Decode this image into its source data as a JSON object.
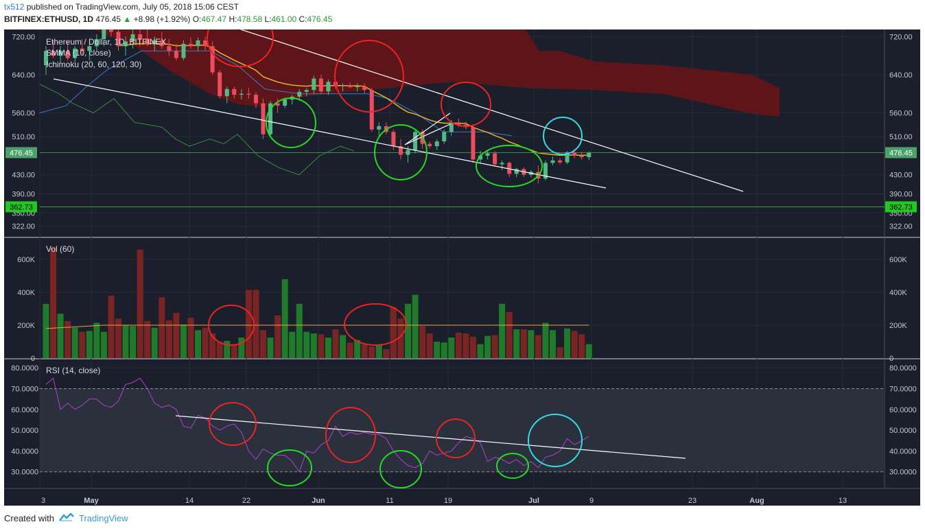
{
  "header": {
    "user": "tx512",
    "published": "published on TradingView.com, July 05, 2018 15:06 CEST",
    "symbol": "BITFINEX:ETHUSD, 1D",
    "last": "476.45",
    "change": "+8.98 (+1.92%)",
    "o_label": "O:",
    "o": "467.47",
    "h_label": "H:",
    "h": "478.58",
    "l_label": "L:",
    "l": "461.00",
    "c_label": "C:",
    "c": "476.45"
  },
  "footer": {
    "created_with": "Created with",
    "brand": "TradingView"
  },
  "colors": {
    "bg": "#1b1f2b",
    "up": "#53b987",
    "down": "#eb4d5c",
    "cloud": "#6a1418",
    "smma": "#e0b52a",
    "rsi": "#b040d0",
    "green_circle": "#22dd22",
    "red_circle": "#ee2222",
    "cyan_circle": "#33dde8"
  },
  "chart_data": [
    {
      "type": "candlestick",
      "title": "Ethereum / Dollar, 1D, BITFINEX",
      "legend": [
        "SMMA (10, close)",
        "Ichimoku (20, 60, 120, 30)"
      ],
      "yticks": [
        720,
        640,
        560,
        510,
        430,
        390,
        350,
        322
      ],
      "ytick_labels": [
        "720.00",
        "640.00",
        "560.00",
        "510.00",
        "430.00",
        "390.00",
        "350.00",
        "322.00"
      ],
      "ylim": [
        300,
        735
      ],
      "price_tag": "476.45",
      "support_tag": "362.73",
      "xticks": [
        "3",
        "May",
        "14",
        "22",
        "Jun",
        "11",
        "19",
        "Jul",
        "9",
        "23",
        "Aug",
        "13"
      ],
      "candles": [
        {
          "d": "May 1",
          "o": 660,
          "h": 700,
          "l": 640,
          "c": 690
        },
        {
          "d": "May 2",
          "o": 690,
          "h": 712,
          "l": 675,
          "c": 680
        },
        {
          "d": "May 3",
          "o": 680,
          "h": 700,
          "l": 665,
          "c": 690
        },
        {
          "d": "May 4",
          "o": 690,
          "h": 710,
          "l": 670,
          "c": 675
        },
        {
          "d": "May 5",
          "o": 675,
          "h": 700,
          "l": 665,
          "c": 695
        },
        {
          "d": "May 6",
          "o": 695,
          "h": 715,
          "l": 680,
          "c": 690
        },
        {
          "d": "May 7",
          "o": 690,
          "h": 705,
          "l": 670,
          "c": 700
        },
        {
          "d": "May 8",
          "o": 700,
          "h": 725,
          "l": 690,
          "c": 715
        },
        {
          "d": "May 9",
          "o": 715,
          "h": 760,
          "l": 700,
          "c": 745
        },
        {
          "d": "May 10",
          "o": 745,
          "h": 770,
          "l": 720,
          "c": 730
        },
        {
          "d": "May 11",
          "o": 730,
          "h": 750,
          "l": 690,
          "c": 700
        },
        {
          "d": "May 12",
          "o": 700,
          "h": 720,
          "l": 680,
          "c": 710
        },
        {
          "d": "May 13",
          "o": 710,
          "h": 735,
          "l": 695,
          "c": 725
        },
        {
          "d": "May 14",
          "o": 725,
          "h": 740,
          "l": 700,
          "c": 715
        },
        {
          "d": "May 15",
          "o": 715,
          "h": 735,
          "l": 700,
          "c": 705
        },
        {
          "d": "May 16",
          "o": 705,
          "h": 720,
          "l": 690,
          "c": 712
        },
        {
          "d": "May 17",
          "o": 712,
          "h": 730,
          "l": 695,
          "c": 700
        },
        {
          "d": "May 18",
          "o": 700,
          "h": 715,
          "l": 680,
          "c": 690
        },
        {
          "d": "May 19",
          "o": 690,
          "h": 705,
          "l": 670,
          "c": 675
        },
        {
          "d": "May 20",
          "o": 675,
          "h": 712,
          "l": 670,
          "c": 705
        },
        {
          "d": "May 21",
          "o": 705,
          "h": 718,
          "l": 695,
          "c": 700
        },
        {
          "d": "May 22",
          "o": 700,
          "h": 718,
          "l": 690,
          "c": 712
        },
        {
          "d": "May 23",
          "o": 712,
          "h": 720,
          "l": 690,
          "c": 700
        },
        {
          "d": "May 24",
          "o": 700,
          "h": 710,
          "l": 640,
          "c": 645
        },
        {
          "d": "May 25",
          "o": 645,
          "h": 650,
          "l": 590,
          "c": 595
        },
        {
          "d": "May 26",
          "o": 595,
          "h": 615,
          "l": 580,
          "c": 610
        },
        {
          "d": "May 27",
          "o": 610,
          "h": 615,
          "l": 590,
          "c": 598
        },
        {
          "d": "May 28",
          "o": 598,
          "h": 610,
          "l": 588,
          "c": 600
        },
        {
          "d": "May 29",
          "o": 600,
          "h": 612,
          "l": 590,
          "c": 598
        },
        {
          "d": "May 30",
          "o": 598,
          "h": 603,
          "l": 570,
          "c": 580
        },
        {
          "d": "May 31",
          "o": 580,
          "h": 590,
          "l": 505,
          "c": 515
        },
        {
          "d": "Jun 1",
          "o": 515,
          "h": 585,
          "l": 510,
          "c": 580
        },
        {
          "d": "Jun 2",
          "o": 580,
          "h": 590,
          "l": 560,
          "c": 575
        },
        {
          "d": "Jun 3",
          "o": 575,
          "h": 592,
          "l": 570,
          "c": 588
        },
        {
          "d": "Jun 4",
          "o": 588,
          "h": 598,
          "l": 578,
          "c": 594
        },
        {
          "d": "Jun 5",
          "o": 594,
          "h": 610,
          "l": 585,
          "c": 604
        },
        {
          "d": "Jun 6",
          "o": 604,
          "h": 612,
          "l": 595,
          "c": 608
        },
        {
          "d": "Jun 7",
          "o": 608,
          "h": 638,
          "l": 600,
          "c": 632
        },
        {
          "d": "Jun 8",
          "o": 632,
          "h": 640,
          "l": 600,
          "c": 605
        },
        {
          "d": "Jun 9",
          "o": 605,
          "h": 630,
          "l": 598,
          "c": 625
        },
        {
          "d": "Jun 10",
          "o": 625,
          "h": 630,
          "l": 610,
          "c": 616
        },
        {
          "d": "Jun 11",
          "o": 616,
          "h": 622,
          "l": 605,
          "c": 618
        },
        {
          "d": "Jun 12",
          "o": 618,
          "h": 624,
          "l": 612,
          "c": 614
        },
        {
          "d": "Jun 13",
          "o": 614,
          "h": 622,
          "l": 605,
          "c": 616
        },
        {
          "d": "Jun 14",
          "o": 616,
          "h": 622,
          "l": 600,
          "c": 608
        },
        {
          "d": "Jun 15",
          "o": 608,
          "h": 612,
          "l": 520,
          "c": 525
        },
        {
          "d": "Jun 16",
          "o": 525,
          "h": 540,
          "l": 512,
          "c": 532
        },
        {
          "d": "Jun 17",
          "o": 532,
          "h": 540,
          "l": 515,
          "c": 520
        },
        {
          "d": "Jun 18",
          "o": 520,
          "h": 525,
          "l": 482,
          "c": 490
        },
        {
          "d": "Jun 19",
          "o": 490,
          "h": 505,
          "l": 462,
          "c": 472
        },
        {
          "d": "Jun 20",
          "o": 472,
          "h": 490,
          "l": 455,
          "c": 482
        },
        {
          "d": "Jun 21",
          "o": 482,
          "h": 525,
          "l": 475,
          "c": 520
        },
        {
          "d": "Jun 22",
          "o": 520,
          "h": 525,
          "l": 485,
          "c": 495
        },
        {
          "d": "Jun 23",
          "o": 495,
          "h": 500,
          "l": 485,
          "c": 490
        },
        {
          "d": "Jun 24",
          "o": 490,
          "h": 505,
          "l": 482,
          "c": 500
        },
        {
          "d": "Jun 25",
          "o": 500,
          "h": 525,
          "l": 495,
          "c": 520
        },
        {
          "d": "Jun 26",
          "o": 520,
          "h": 545,
          "l": 512,
          "c": 540
        },
        {
          "d": "Jun 27",
          "o": 540,
          "h": 548,
          "l": 530,
          "c": 535
        },
        {
          "d": "Jun 28",
          "o": 535,
          "h": 542,
          "l": 525,
          "c": 530
        },
        {
          "d": "Jun 29",
          "o": 530,
          "h": 536,
          "l": 455,
          "c": 462
        },
        {
          "d": "Jun 30",
          "o": 462,
          "h": 480,
          "l": 455,
          "c": 470
        },
        {
          "d": "Jul 1",
          "o": 470,
          "h": 480,
          "l": 462,
          "c": 475
        },
        {
          "d": "Jul 2",
          "o": 475,
          "h": 480,
          "l": 448,
          "c": 452
        },
        {
          "d": "Jul 3",
          "o": 452,
          "h": 460,
          "l": 440,
          "c": 455
        },
        {
          "d": "Jul 4",
          "o": 455,
          "h": 458,
          "l": 425,
          "c": 432
        },
        {
          "d": "Jul 5",
          "o": 432,
          "h": 445,
          "l": 425,
          "c": 442
        },
        {
          "d": "Jul 6",
          "o": 442,
          "h": 446,
          "l": 425,
          "c": 430
        },
        {
          "d": "Jul 7",
          "o": 430,
          "h": 440,
          "l": 425,
          "c": 436
        },
        {
          "d": "Jul 8",
          "o": 436,
          "h": 450,
          "l": 412,
          "c": 422
        },
        {
          "d": "Jul 9",
          "o": 422,
          "h": 460,
          "l": 418,
          "c": 455
        },
        {
          "d": "Jul 10",
          "o": 455,
          "h": 468,
          "l": 450,
          "c": 460
        },
        {
          "d": "Jul 11",
          "o": 460,
          "h": 465,
          "l": 452,
          "c": 456
        },
        {
          "d": "Jul 12",
          "o": 456,
          "h": 480,
          "l": 452,
          "c": 477
        },
        {
          "d": "Jul 13",
          "o": 477,
          "h": 484,
          "l": 465,
          "c": 470
        },
        {
          "d": "Jul 14",
          "o": 470,
          "h": 478,
          "l": 462,
          "c": 467
        },
        {
          "d": "Jul 15",
          "o": 467,
          "h": 479,
          "l": 461,
          "c": 476
        }
      ]
    },
    {
      "type": "bar",
      "title": "Vol (60)",
      "yticks": [
        0,
        200000,
        400000,
        600000
      ],
      "ytick_labels": [
        "0",
        "200K",
        "400K",
        "600K"
      ],
      "ylim": [
        0,
        730000
      ],
      "values": [
        330000,
        670000,
        270000,
        225000,
        185000,
        160000,
        165000,
        215000,
        160000,
        380000,
        240000,
        200000,
        195000,
        660000,
        225000,
        185000,
        370000,
        230000,
        275000,
        205000,
        245000,
        170000,
        185000,
        150000,
        100000,
        105000,
        85000,
        125000,
        415000,
        415000,
        170000,
        125000,
        260000,
        480000,
        160000,
        330000,
        160000,
        150000,
        145000,
        125000,
        175000,
        140000,
        95000,
        110000,
        85000,
        70000,
        80000,
        55000,
        310000,
        240000,
        330000,
        385000,
        195000,
        150000,
        100000,
        95000,
        125000,
        155000,
        150000,
        130000,
        85000,
        135000,
        140000,
        330000,
        280000,
        175000,
        175000,
        170000,
        140000,
        215000,
        170000,
        65000,
        180000,
        165000,
        145000,
        85000
      ],
      "ma_value": 200000
    },
    {
      "type": "line",
      "title": "RSI (14, close)",
      "yticks": [
        30,
        40,
        50,
        60,
        70,
        80
      ],
      "ytick_labels": [
        "30.0000",
        "40.0000",
        "50.0000",
        "60.0000",
        "70.0000",
        "80.0000"
      ],
      "ylim": [
        22,
        84
      ],
      "band": [
        30,
        70
      ],
      "values": [
        72,
        75,
        60,
        63,
        60,
        62,
        65,
        65,
        62,
        61,
        64,
        72,
        73,
        75,
        70,
        63,
        61,
        62,
        60,
        52,
        51,
        57,
        56,
        52,
        50,
        52,
        53,
        49,
        40,
        36,
        41,
        39,
        38,
        38,
        35,
        30,
        40,
        39,
        43,
        45,
        52,
        47,
        49,
        48,
        49,
        48,
        48,
        46,
        40,
        36,
        33,
        32,
        34,
        40,
        38,
        39,
        40,
        44,
        47,
        46,
        44,
        35,
        37,
        36,
        34,
        36,
        33,
        35,
        32,
        37,
        38,
        40,
        46,
        43,
        45,
        47
      ]
    }
  ],
  "annotations": {
    "trendlines": "drawn",
    "circles": "drawn"
  }
}
